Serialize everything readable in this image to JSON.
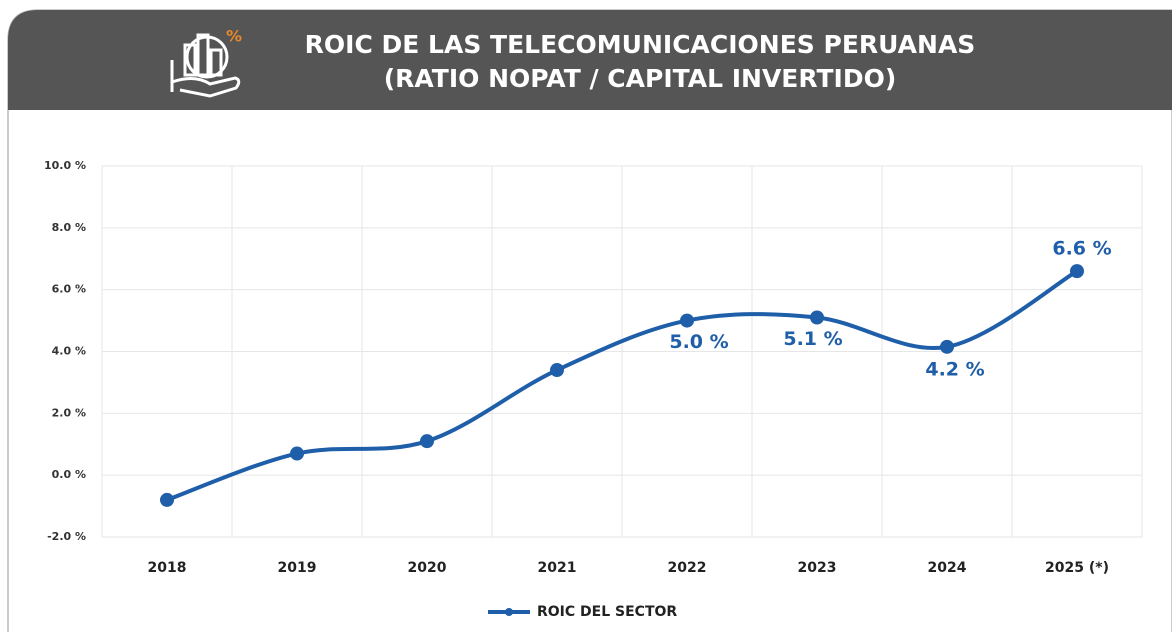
{
  "chart_data": {
    "type": "line",
    "title": "ROIC DE LAS TELECOMUNICACIONES PERUANAS",
    "subtitle": "(RATIO NOPAT / CAPITAL INVERTIDO)",
    "categories": [
      "2018",
      "2019",
      "2020",
      "2021",
      "2022",
      "2023",
      "2024",
      "2025 (*)"
    ],
    "series": [
      {
        "name": "ROIC DEL SECTOR",
        "color": "#1f5ea8",
        "values": [
          -0.8,
          0.7,
          1.1,
          3.4,
          5.0,
          5.1,
          4.15,
          6.6
        ],
        "value_labels": [
          null,
          null,
          null,
          null,
          "5.0 %",
          "5.1 %",
          "4.2 %",
          "6.6 %"
        ]
      }
    ],
    "ylim": [
      -2,
      10
    ],
    "yticks": [
      {
        "value": -2,
        "label": "-2.0 %"
      },
      {
        "value": 0,
        "label": "0.0 %"
      },
      {
        "value": 2,
        "label": "2.0 %"
      },
      {
        "value": 4,
        "label": "4.0 %"
      },
      {
        "value": 6,
        "label": "6.0 %"
      },
      {
        "value": 8,
        "label": "8.0 %"
      },
      {
        "value": 10,
        "label": "10.0 %"
      }
    ],
    "grid": true,
    "legend": "bottom"
  }
}
